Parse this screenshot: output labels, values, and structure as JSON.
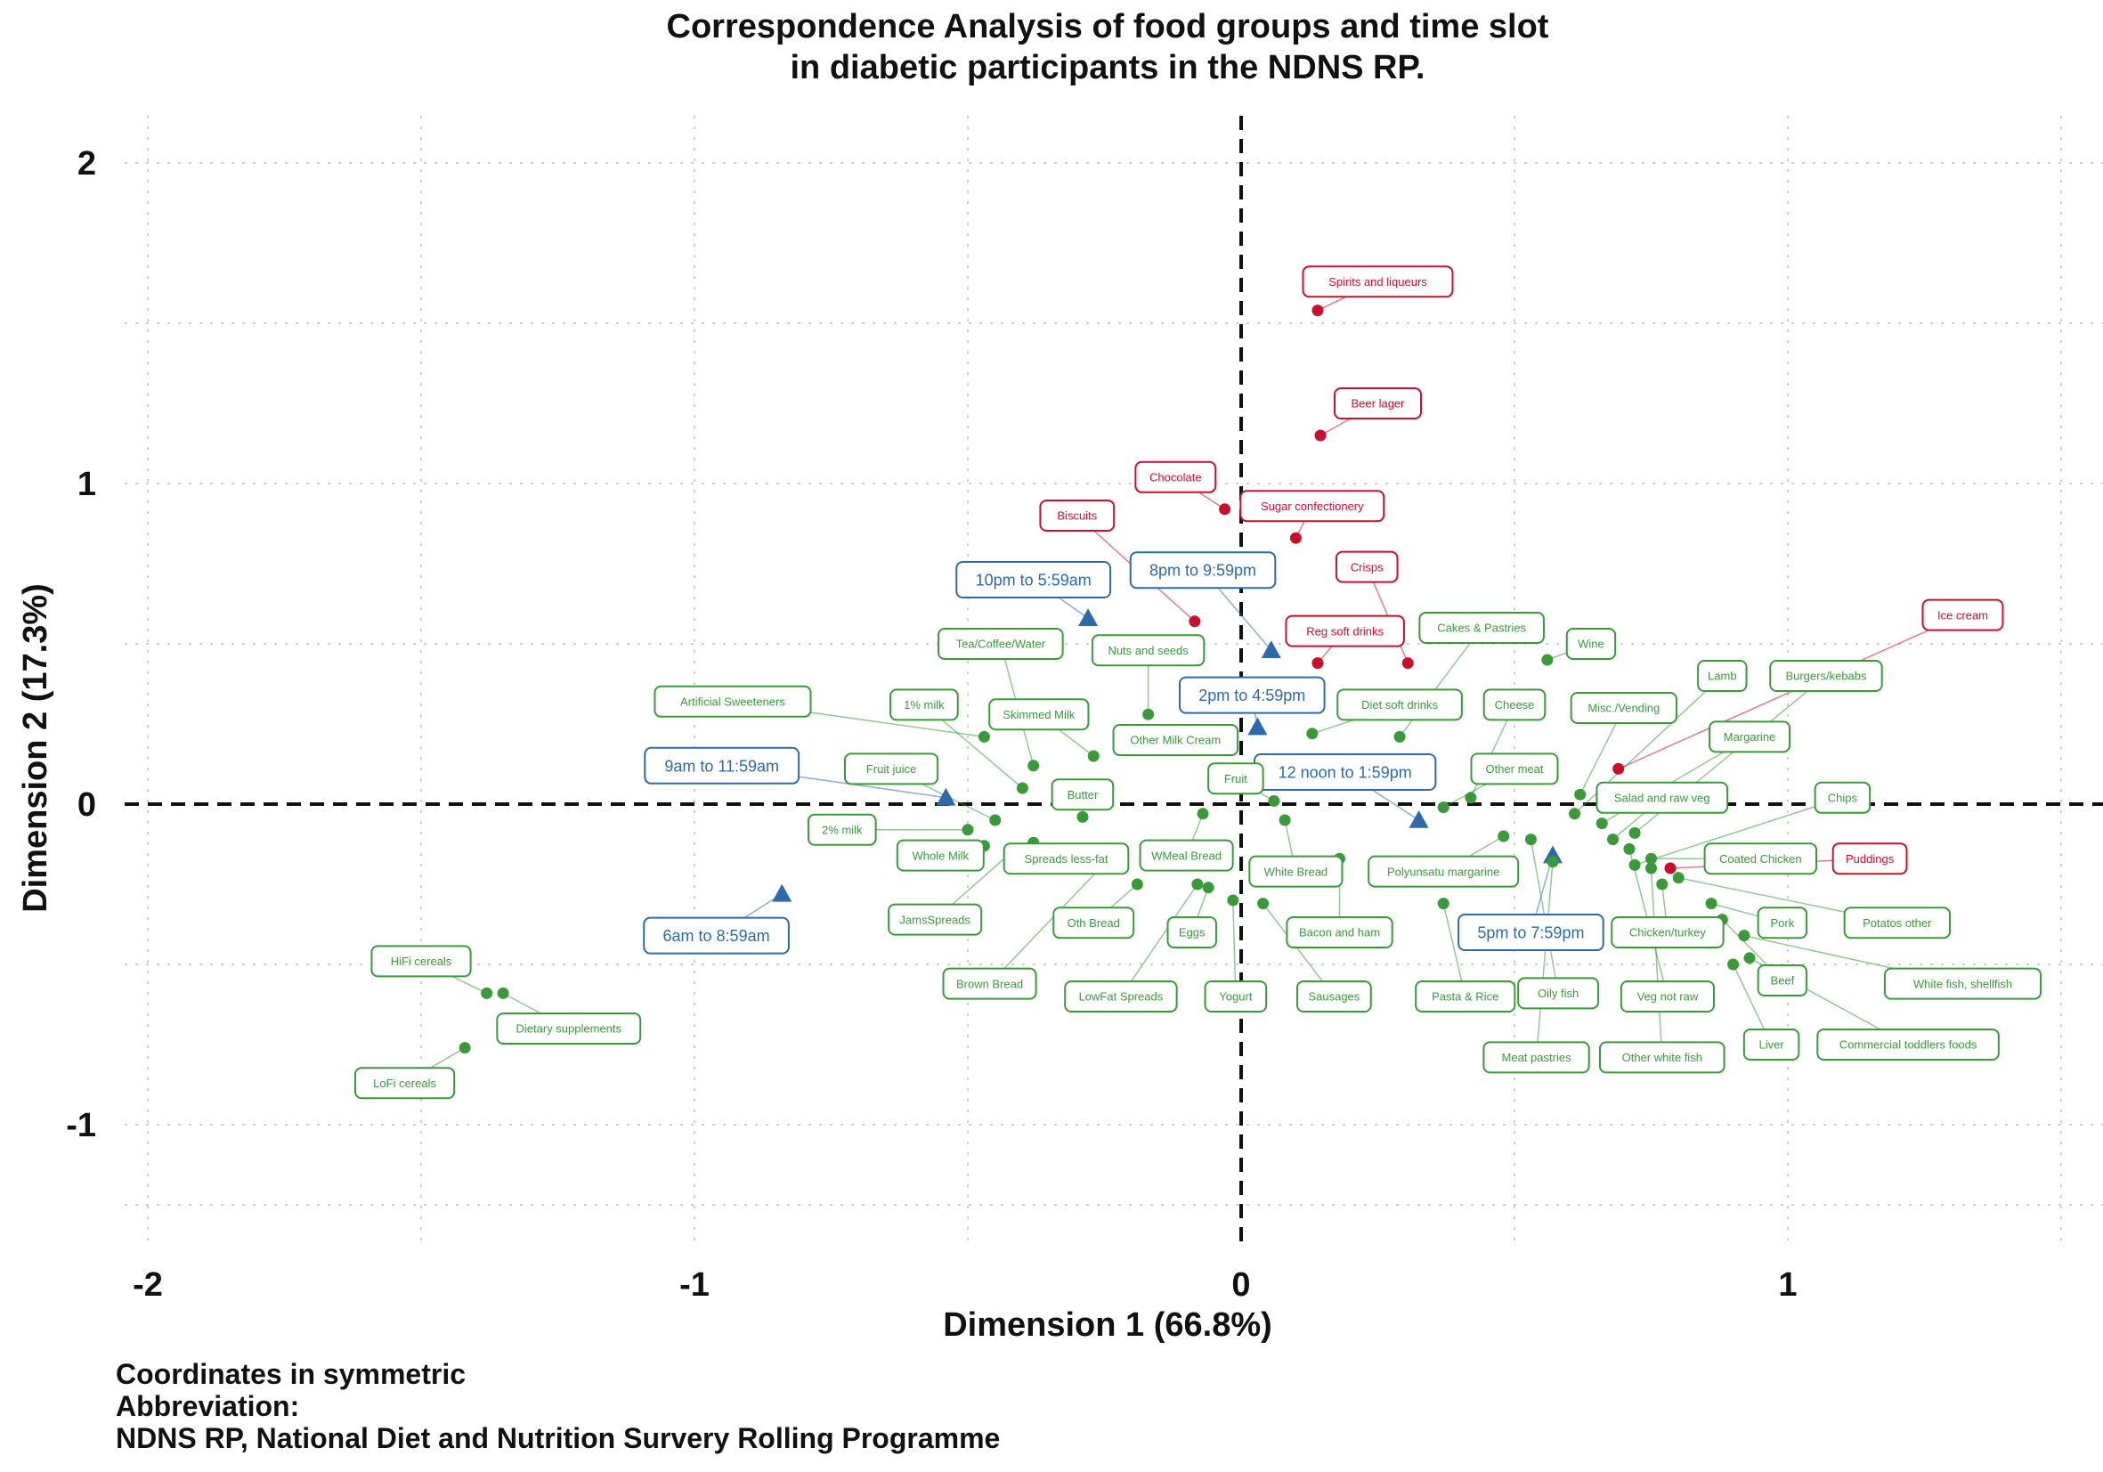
{
  "chart_data": {
    "type": "scatter",
    "title": [
      "Correspondence Analysis of food groups and time slot",
      "in diabetic participants in the NDNS RP."
    ],
    "xlabel": "Dimension 1 (66.8%)",
    "ylabel": "Dimension 2 (17.3%)",
    "xlim": [
      -2.05,
      1.55
    ],
    "ylim": [
      -1.38,
      2.12
    ],
    "xticks": [
      -2,
      -1,
      0,
      1
    ],
    "yticks": [
      -1,
      0,
      1,
      2
    ],
    "grid": true,
    "legend": "none",
    "colors": {
      "time": "#2e6aa8",
      "food": "#3a9a3a",
      "highlight": "#c8102e"
    },
    "series": [
      {
        "group": "time",
        "marker": "triangle",
        "points": [
          {
            "label": "10pm to 5:59am",
            "x": -0.28,
            "y": 0.58,
            "lx": -0.38,
            "ly": 0.7
          },
          {
            "label": "8pm to 9:59pm",
            "x": 0.055,
            "y": 0.48,
            "lx": -0.07,
            "ly": 0.73
          },
          {
            "label": "2pm to 4:59pm",
            "x": 0.03,
            "y": 0.24,
            "lx": 0.02,
            "ly": 0.34
          },
          {
            "label": "9am to 11:59am",
            "x": -0.54,
            "y": 0.02,
            "lx": -0.95,
            "ly": 0.12
          },
          {
            "label": "12 noon to 1:59pm",
            "x": 0.325,
            "y": -0.05,
            "lx": 0.19,
            "ly": 0.1
          },
          {
            "label": "6am to 8:59am",
            "x": -0.84,
            "y": -0.28,
            "lx": -0.96,
            "ly": -0.41
          },
          {
            "label": "5pm to 7:59pm",
            "x": 0.57,
            "y": -0.16,
            "lx": 0.53,
            "ly": -0.4
          }
        ]
      },
      {
        "group": "highlight",
        "marker": "circle",
        "points": [
          {
            "label": "Spirits and liqueurs",
            "x": 0.14,
            "y": 1.54,
            "lx": 0.25,
            "ly": 1.63
          },
          {
            "label": "Beer lager",
            "x": 0.145,
            "y": 1.15,
            "lx": 0.25,
            "ly": 1.25
          },
          {
            "label": "Chocolate",
            "x": -0.03,
            "y": 0.92,
            "lx": -0.12,
            "ly": 1.02
          },
          {
            "label": "Sugar confectionery",
            "x": 0.1,
            "y": 0.83,
            "lx": 0.13,
            "ly": 0.93
          },
          {
            "label": "Biscuits",
            "x": -0.085,
            "y": 0.57,
            "lx": -0.3,
            "ly": 0.9
          },
          {
            "label": "Crisps",
            "x": 0.305,
            "y": 0.44,
            "lx": 0.23,
            "ly": 0.74
          },
          {
            "label": "Reg soft drinks",
            "x": 0.14,
            "y": 0.44,
            "lx": 0.19,
            "ly": 0.54
          },
          {
            "label": "Ice cream",
            "x": 0.69,
            "y": 0.11,
            "lx": 1.32,
            "ly": 0.59
          },
          {
            "label": "Puddings",
            "x": 0.785,
            "y": -0.2,
            "lx": 1.15,
            "ly": -0.17
          }
        ]
      },
      {
        "group": "food",
        "marker": "circle",
        "points": [
          {
            "label": "Tea/Coffee/Water",
            "x": -0.38,
            "y": 0.12,
            "lx": -0.44,
            "ly": 0.5
          },
          {
            "label": "Nuts and seeds",
            "x": -0.17,
            "y": 0.28,
            "lx": -0.17,
            "ly": 0.48
          },
          {
            "label": "Cakes & Pastries",
            "x": 0.29,
            "y": 0.21,
            "lx": 0.44,
            "ly": 0.55
          },
          {
            "label": "Wine",
            "x": 0.56,
            "y": 0.45,
            "lx": 0.64,
            "ly": 0.5
          },
          {
            "label": "Artificial Sweeteners",
            "x": -0.47,
            "y": 0.21,
            "lx": -0.93,
            "ly": 0.32
          },
          {
            "label": "1% milk",
            "x": -0.4,
            "y": 0.05,
            "lx": -0.58,
            "ly": 0.31
          },
          {
            "label": "Skimmed Milk",
            "x": -0.27,
            "y": 0.15,
            "lx": -0.37,
            "ly": 0.28
          },
          {
            "label": "Other Milk Cream",
            "x": -0.07,
            "y": 0.18,
            "lx": -0.12,
            "ly": 0.2
          },
          {
            "label": "Diet soft drinks",
            "x": 0.13,
            "y": 0.22,
            "lx": 0.29,
            "ly": 0.31
          },
          {
            "label": "Cheese",
            "x": 0.42,
            "y": 0.02,
            "lx": 0.5,
            "ly": 0.31
          },
          {
            "label": "Misc./Vending",
            "x": 0.62,
            "y": 0.03,
            "lx": 0.7,
            "ly": 0.3
          },
          {
            "label": "Lamb",
            "x": 0.61,
            "y": -0.03,
            "lx": 0.88,
            "ly": 0.4
          },
          {
            "label": "Burgers/kebabs",
            "x": 0.72,
            "y": -0.09,
            "lx": 1.07,
            "ly": 0.4
          },
          {
            "label": "Margarine",
            "x": 0.66,
            "y": -0.06,
            "lx": 0.93,
            "ly": 0.21
          },
          {
            "label": "Fruit juice",
            "x": -0.45,
            "y": -0.05,
            "lx": -0.64,
            "ly": 0.11
          },
          {
            "label": "Fruit",
            "x": 0.06,
            "y": 0.01,
            "lx": -0.01,
            "ly": 0.08
          },
          {
            "label": "Other meat",
            "x": 0.37,
            "y": -0.01,
            "lx": 0.5,
            "ly": 0.11
          },
          {
            "label": "Butter",
            "x": -0.29,
            "y": -0.04,
            "lx": -0.29,
            "ly": 0.03
          },
          {
            "label": "Salad and raw veg",
            "x": 0.68,
            "y": -0.11,
            "lx": 0.77,
            "ly": 0.02
          },
          {
            "label": "Chips",
            "x": 0.72,
            "y": -0.19,
            "lx": 1.1,
            "ly": 0.02
          },
          {
            "label": "2% milk",
            "x": -0.5,
            "y": -0.08,
            "lx": -0.73,
            "ly": -0.08
          },
          {
            "label": "Whole Milk",
            "x": -0.47,
            "y": -0.13,
            "lx": -0.55,
            "ly": -0.16
          },
          {
            "label": "Spreads less-fat",
            "x": -0.38,
            "y": -0.12,
            "lx": -0.32,
            "ly": -0.17
          },
          {
            "label": "WMeal Bread",
            "x": -0.07,
            "y": -0.03,
            "lx": -0.1,
            "ly": -0.16
          },
          {
            "label": "White Bread",
            "x": 0.08,
            "y": -0.05,
            "lx": 0.1,
            "ly": -0.21
          },
          {
            "label": "Polyunsatu margarine",
            "x": 0.48,
            "y": -0.1,
            "lx": 0.37,
            "ly": -0.21
          },
          {
            "label": "Coated Chicken",
            "x": 0.75,
            "y": -0.17,
            "lx": 0.95,
            "ly": -0.17
          },
          {
            "label": "JamsSpreads",
            "x": -0.42,
            "y": -0.15,
            "lx": -0.56,
            "ly": -0.36
          },
          {
            "label": "Oth Bread",
            "x": -0.19,
            "y": -0.25,
            "lx": -0.27,
            "ly": -0.37
          },
          {
            "label": "Eggs",
            "x": -0.06,
            "y": -0.26,
            "lx": -0.09,
            "ly": -0.4
          },
          {
            "label": "Bacon and ham",
            "x": 0.18,
            "y": -0.17,
            "lx": 0.18,
            "ly": -0.4
          },
          {
            "label": "Pork",
            "x": 0.86,
            "y": -0.31,
            "lx": 0.99,
            "ly": -0.37
          },
          {
            "label": "Potatos other",
            "x": 0.8,
            "y": -0.23,
            "lx": 1.2,
            "ly": -0.37
          },
          {
            "label": "Chicken/turkey",
            "x": 0.77,
            "y": -0.25,
            "lx": 0.78,
            "ly": -0.4
          },
          {
            "label": "Brown Bread",
            "x": -0.23,
            "y": -0.15,
            "lx": -0.46,
            "ly": -0.56
          },
          {
            "label": "LowFat Spreads",
            "x": -0.08,
            "y": -0.25,
            "lx": -0.22,
            "ly": -0.6
          },
          {
            "label": "Yogurt",
            "x": -0.015,
            "y": -0.3,
            "lx": -0.01,
            "ly": -0.6
          },
          {
            "label": "Sausages",
            "x": 0.04,
            "y": -0.31,
            "lx": 0.17,
            "ly": -0.6
          },
          {
            "label": "Pasta & Rice",
            "x": 0.37,
            "y": -0.31,
            "lx": 0.41,
            "ly": -0.6
          },
          {
            "label": "Oily fish",
            "x": 0.53,
            "y": -0.11,
            "lx": 0.58,
            "ly": -0.59
          },
          {
            "label": "Veg not raw",
            "x": 0.71,
            "y": -0.14,
            "lx": 0.78,
            "ly": -0.6
          },
          {
            "label": "Beef",
            "x": 0.88,
            "y": -0.36,
            "lx": 0.99,
            "ly": -0.55
          },
          {
            "label": "White fish, shellfish",
            "x": 0.92,
            "y": -0.41,
            "lx": 1.32,
            "ly": -0.56
          },
          {
            "label": "Meat pastries",
            "x": 0.57,
            "y": -0.18,
            "lx": 0.54,
            "ly": -0.79
          },
          {
            "label": "Other white fish",
            "x": 0.75,
            "y": -0.2,
            "lx": 0.77,
            "ly": -0.79
          },
          {
            "label": "Liver",
            "x": 0.9,
            "y": -0.5,
            "lx": 0.97,
            "ly": -0.75
          },
          {
            "label": "Commercial toddlers foods",
            "x": 0.93,
            "y": -0.48,
            "lx": 1.22,
            "ly": -0.75
          },
          {
            "label": "HiFi cereals",
            "x": -1.38,
            "y": -0.59,
            "lx": -1.5,
            "ly": -0.49
          },
          {
            "label": "Dietary supplements",
            "x": -1.35,
            "y": -0.59,
            "lx": -1.23,
            "ly": -0.7
          },
          {
            "label": "LoFi cereals",
            "x": -1.42,
            "y": -0.76,
            "lx": -1.53,
            "ly": -0.87
          }
        ]
      }
    ]
  },
  "caption": {
    "line1": "Coordinates in symmetric",
    "line2": "Abbreviation:",
    "line3": "NDNS RP, National Diet and Nutrition Survery Rolling Programme"
  }
}
